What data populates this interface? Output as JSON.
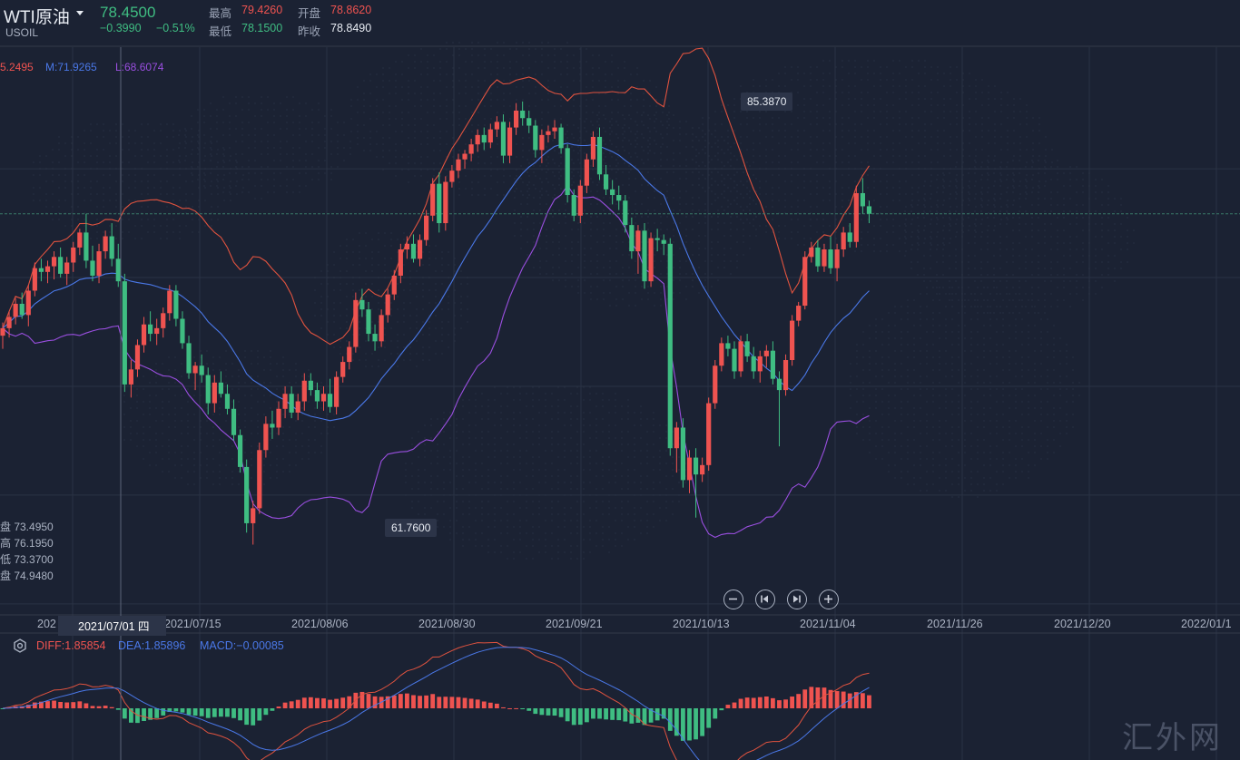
{
  "header": {
    "symbol_name": "WTI原油",
    "symbol_code": "USOIL",
    "last_price": "78.4500",
    "change": "−0.3990",
    "change_pct": "−0.51%",
    "labels": {
      "high": "最高",
      "low": "最低",
      "open": "开盘",
      "prev_close": "昨收"
    },
    "high": "79.4260",
    "low": "78.1500",
    "open": "78.8620",
    "prev_close": "78.8490"
  },
  "boll_legend": {
    "upper": "5.2495",
    "middle": "M:71.9265",
    "lower": "L:68.6074"
  },
  "ohlc_legend": [
    "盘 73.4950",
    "高 76.1950",
    "低 73.3700",
    "盘 74.9480"
  ],
  "price_tags": {
    "max": "85.3870",
    "min": "61.7600"
  },
  "x_axis": {
    "cursor_label": "2021/07/01 四",
    "labels": [
      "202",
      "2021/07/15",
      "2021/08/06",
      "2021/08/30",
      "2021/09/21",
      "2021/10/13",
      "2021/11/04",
      "2021/11/26",
      "2021/12/20",
      "2022/01/1"
    ]
  },
  "macd_legend": {
    "diff": "DIFF:1.85854",
    "dea": "DEA:1.85896",
    "macd": "MACD:−0.00085"
  },
  "watermark": "汇外网",
  "colors": {
    "up": "#ef5350",
    "down": "#3fbd82",
    "upper": "#e0533f",
    "middle": "#4a78e8",
    "lower": "#9a4fe0",
    "bg": "#1b2233"
  },
  "chart_data": {
    "type": "candlestick",
    "ylim": [
      58.4,
      87.8
    ],
    "candles": [
      [
        72.9,
        73.6,
        72.2,
        73.3
      ],
      [
        73.3,
        74.2,
        72.8,
        73.9
      ],
      [
        73.9,
        74.9,
        73.5,
        74.6
      ],
      [
        74.6,
        75.2,
        73.8,
        74.0
      ],
      [
        74.0,
        75.6,
        73.4,
        75.3
      ],
      [
        75.3,
        76.8,
        75.0,
        76.5
      ],
      [
        76.5,
        77.0,
        75.8,
        76.3
      ],
      [
        76.3,
        76.9,
        75.7,
        76.6
      ],
      [
        76.6,
        77.4,
        75.9,
        77.1
      ],
      [
        77.1,
        77.6,
        76.0,
        76.2
      ],
      [
        76.2,
        77.1,
        75.6,
        76.8
      ],
      [
        76.8,
        77.9,
        76.3,
        77.6
      ],
      [
        77.6,
        78.6,
        77.2,
        78.4
      ],
      [
        78.4,
        79.4,
        76.5,
        76.9
      ],
      [
        76.9,
        77.7,
        75.8,
        76.1
      ],
      [
        76.1,
        77.8,
        75.7,
        77.4
      ],
      [
        77.4,
        78.5,
        77.0,
        78.2
      ],
      [
        78.2,
        78.9,
        76.6,
        77.0
      ],
      [
        77.0,
        77.8,
        75.5,
        75.8
      ],
      [
        75.8,
        76.2,
        69.9,
        70.3
      ],
      [
        70.3,
        71.6,
        69.6,
        71.1
      ],
      [
        71.1,
        72.7,
        70.7,
        72.4
      ],
      [
        72.4,
        73.9,
        72.0,
        73.5
      ],
      [
        73.5,
        74.2,
        72.6,
        73.0
      ],
      [
        73.0,
        73.8,
        72.4,
        73.3
      ],
      [
        73.3,
        74.4,
        72.8,
        74.1
      ],
      [
        74.1,
        75.6,
        73.7,
        75.3
      ],
      [
        75.3,
        75.6,
        73.4,
        73.8
      ],
      [
        73.8,
        74.2,
        72.2,
        72.5
      ],
      [
        72.5,
        72.9,
        70.6,
        70.9
      ],
      [
        70.9,
        71.5,
        70.0,
        71.3
      ],
      [
        71.3,
        71.9,
        70.4,
        70.8
      ],
      [
        70.8,
        71.2,
        68.7,
        69.3
      ],
      [
        69.3,
        70.8,
        68.8,
        70.4
      ],
      [
        70.4,
        71.0,
        69.6,
        69.8
      ],
      [
        69.8,
        70.3,
        68.7,
        69.0
      ],
      [
        69.0,
        69.5,
        67.3,
        67.6
      ],
      [
        67.6,
        67.9,
        65.6,
        65.9
      ],
      [
        65.9,
        66.3,
        62.4,
        62.9
      ],
      [
        62.9,
        64.1,
        61.76,
        63.7
      ],
      [
        63.7,
        67.2,
        63.4,
        66.8
      ],
      [
        66.8,
        68.6,
        66.4,
        68.2
      ],
      [
        68.2,
        68.9,
        67.4,
        68.0
      ],
      [
        68.0,
        69.4,
        67.6,
        69.0
      ],
      [
        69.0,
        70.2,
        68.5,
        69.8
      ],
      [
        69.8,
        70.2,
        68.5,
        68.8
      ],
      [
        68.8,
        69.8,
        68.4,
        69.4
      ],
      [
        69.4,
        70.9,
        68.9,
        70.5
      ],
      [
        70.5,
        70.9,
        69.7,
        70.0
      ],
      [
        70.0,
        70.4,
        69.0,
        69.4
      ],
      [
        69.4,
        70.2,
        68.9,
        69.8
      ],
      [
        69.8,
        70.6,
        68.8,
        69.1
      ],
      [
        69.1,
        71.0,
        68.7,
        70.7
      ],
      [
        70.7,
        71.8,
        70.4,
        71.5
      ],
      [
        71.5,
        72.6,
        71.1,
        72.3
      ],
      [
        72.3,
        75.2,
        72.0,
        74.8
      ],
      [
        74.8,
        75.4,
        73.9,
        74.3
      ],
      [
        74.3,
        74.7,
        72.6,
        73.0
      ],
      [
        73.0,
        73.5,
        72.1,
        72.6
      ],
      [
        72.6,
        74.3,
        72.3,
        74.0
      ],
      [
        74.0,
        75.4,
        73.6,
        75.1
      ],
      [
        75.1,
        76.4,
        74.8,
        76.1
      ],
      [
        76.1,
        77.8,
        75.7,
        77.5
      ],
      [
        77.5,
        78.2,
        77.0,
        77.8
      ],
      [
        77.8,
        78.3,
        76.8,
        77.0
      ],
      [
        77.0,
        78.3,
        76.6,
        78.0
      ],
      [
        78.0,
        79.6,
        77.7,
        79.3
      ],
      [
        79.3,
        81.3,
        79.0,
        81.0
      ],
      [
        81.0,
        81.6,
        78.4,
        78.9
      ],
      [
        78.9,
        81.4,
        78.5,
        81.1
      ],
      [
        81.1,
        82.0,
        80.8,
        81.7
      ],
      [
        81.7,
        82.6,
        81.3,
        82.3
      ],
      [
        82.3,
        82.8,
        81.8,
        82.6
      ],
      [
        82.6,
        83.4,
        82.2,
        83.1
      ],
      [
        83.1,
        83.9,
        82.7,
        83.6
      ],
      [
        83.6,
        84.0,
        82.8,
        83.2
      ],
      [
        83.2,
        84.2,
        82.9,
        83.9
      ],
      [
        83.9,
        84.6,
        83.5,
        84.3
      ],
      [
        84.3,
        84.7,
        82.1,
        82.5
      ],
      [
        82.5,
        84.3,
        82.1,
        84.0
      ],
      [
        84.0,
        85.3,
        83.6,
        84.9
      ],
      [
        84.9,
        85.387,
        84.1,
        84.5
      ],
      [
        84.5,
        84.9,
        83.7,
        84.1
      ],
      [
        84.1,
        84.4,
        82.4,
        82.8
      ],
      [
        82.8,
        83.9,
        82.1,
        83.6
      ],
      [
        83.6,
        84.1,
        83.2,
        83.8
      ],
      [
        83.8,
        84.4,
        83.4,
        84.0
      ],
      [
        84.0,
        84.2,
        82.6,
        82.9
      ],
      [
        82.9,
        83.1,
        80.0,
        80.4
      ],
      [
        80.4,
        80.7,
        79.0,
        79.3
      ],
      [
        79.3,
        81.2,
        78.9,
        80.9
      ],
      [
        80.9,
        82.6,
        80.5,
        82.3
      ],
      [
        82.3,
        83.8,
        81.9,
        83.5
      ],
      [
        83.5,
        84.0,
        81.2,
        81.5
      ],
      [
        81.5,
        82.0,
        80.4,
        80.7
      ],
      [
        80.7,
        81.2,
        79.9,
        80.4
      ],
      [
        80.4,
        80.9,
        79.6,
        80.1
      ],
      [
        80.1,
        80.4,
        78.4,
        78.8
      ],
      [
        78.8,
        79.2,
        77.0,
        77.4
      ],
      [
        77.4,
        78.8,
        76.2,
        78.5
      ],
      [
        78.5,
        78.9,
        75.4,
        75.8
      ],
      [
        75.8,
        78.4,
        75.5,
        78.1
      ],
      [
        78.1,
        78.6,
        77.4,
        78.0
      ],
      [
        78.0,
        78.3,
        77.2,
        77.8
      ],
      [
        77.8,
        78.1,
        66.5,
        66.9
      ],
      [
        66.9,
        68.3,
        65.6,
        68.0
      ],
      [
        68.0,
        68.5,
        64.8,
        65.2
      ],
      [
        65.2,
        66.8,
        64.5,
        66.4
      ],
      [
        66.4,
        66.9,
        63.2,
        65.5
      ],
      [
        65.5,
        66.4,
        65.1,
        66.0
      ],
      [
        66.0,
        69.6,
        65.7,
        69.3
      ],
      [
        69.3,
        71.6,
        69.0,
        71.3
      ],
      [
        71.3,
        72.8,
        71.0,
        72.5
      ],
      [
        72.5,
        72.9,
        71.8,
        72.2
      ],
      [
        72.2,
        72.6,
        70.6,
        71.0
      ],
      [
        71.0,
        72.9,
        70.7,
        72.6
      ],
      [
        72.6,
        73.0,
        71.5,
        71.8
      ],
      [
        71.8,
        72.3,
        70.6,
        71.0
      ],
      [
        71.0,
        72.1,
        70.4,
        71.8
      ],
      [
        71.8,
        72.4,
        71.2,
        72.1
      ],
      [
        72.1,
        72.6,
        70.3,
        70.6
      ],
      [
        70.6,
        71.0,
        67.0,
        70.0
      ],
      [
        70.0,
        71.9,
        69.7,
        71.6
      ],
      [
        71.6,
        74.0,
        71.3,
        73.7
      ],
      [
        73.7,
        74.7,
        73.4,
        74.5
      ],
      [
        74.5,
        77.4,
        74.3,
        77.1
      ],
      [
        77.1,
        77.9,
        76.8,
        77.6
      ],
      [
        77.6,
        78.0,
        76.3,
        76.6
      ],
      [
        76.6,
        77.8,
        76.3,
        77.5
      ],
      [
        77.5,
        78.2,
        76.2,
        76.5
      ],
      [
        76.5,
        77.8,
        75.8,
        77.5
      ],
      [
        77.5,
        78.7,
        77.1,
        78.4
      ],
      [
        78.4,
        78.9,
        77.6,
        77.9
      ],
      [
        77.9,
        80.9,
        77.6,
        80.5
      ],
      [
        80.5,
        81.3,
        79.4,
        79.8
      ],
      [
        79.8,
        80.1,
        78.9,
        79.4
      ]
    ]
  }
}
